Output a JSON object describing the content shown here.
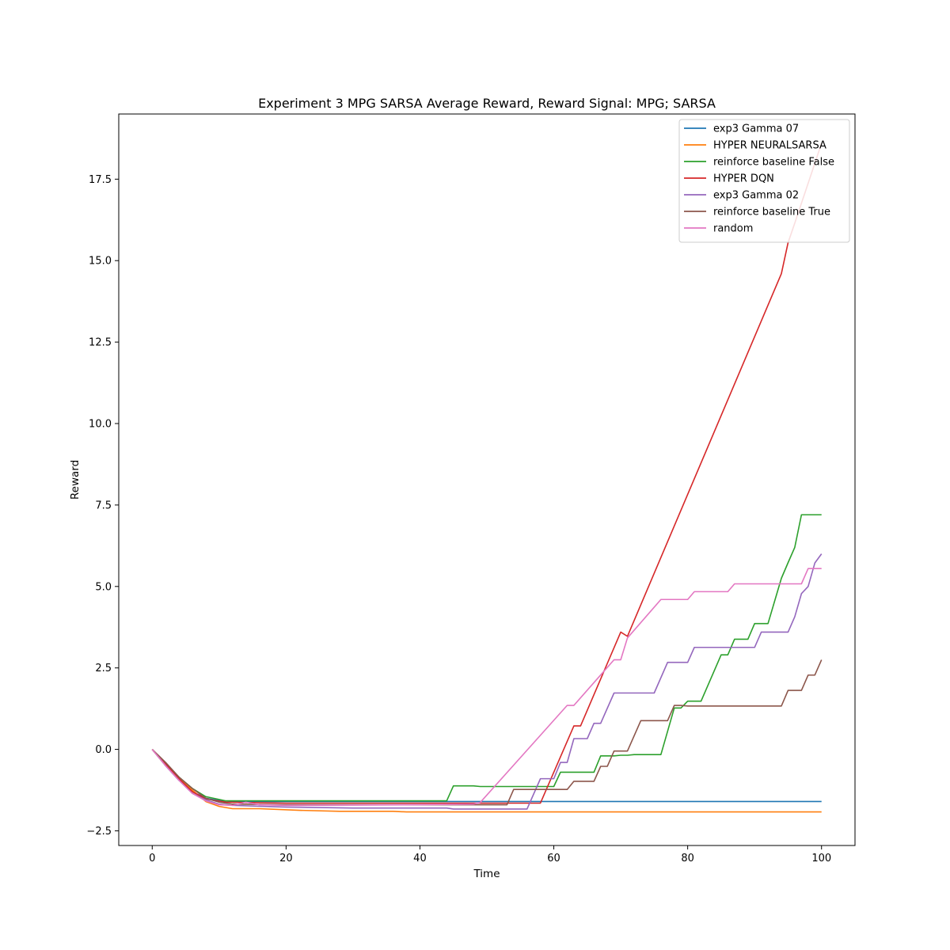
{
  "chart_data": {
    "type": "line",
    "title": "Experiment 3 MPG SARSA Average Reward,  Reward Signal: MPG; SARSA",
    "xlabel": "Time",
    "ylabel": "Reward",
    "xlim": [
      -5,
      105
    ],
    "ylim": [
      -2.95,
      19.5
    ],
    "xticks": [
      0,
      20,
      40,
      60,
      80,
      100
    ],
    "xtick_labels": [
      "0",
      "20",
      "40",
      "60",
      "80",
      "100"
    ],
    "yticks": [
      -2.5,
      0.0,
      2.5,
      5.0,
      7.5,
      10.0,
      12.5,
      15.0,
      17.5
    ],
    "ytick_labels": [
      "−2.5",
      "0.0",
      "2.5",
      "5.0",
      "7.5",
      "10.0",
      "12.5",
      "15.0",
      "17.5"
    ],
    "grid": false,
    "legend_position": "top-right",
    "series": [
      {
        "name": "exp3 Gamma 07",
        "color": "#1f77b4",
        "points": [
          [
            0,
            0
          ],
          [
            2,
            -0.5
          ],
          [
            4,
            -0.95
          ],
          [
            6,
            -1.3
          ],
          [
            8,
            -1.5
          ],
          [
            10,
            -1.57
          ],
          [
            12,
            -1.6
          ],
          [
            20,
            -1.6
          ],
          [
            40,
            -1.6
          ],
          [
            60,
            -1.6
          ],
          [
            80,
            -1.6
          ],
          [
            100,
            -1.6
          ]
        ]
      },
      {
        "name": "HYPER NEURALSARSA",
        "color": "#ff7f0e",
        "points": [
          [
            0,
            0
          ],
          [
            2,
            -0.5
          ],
          [
            4,
            -0.9
          ],
          [
            6,
            -1.25
          ],
          [
            8,
            -1.6
          ],
          [
            10,
            -1.75
          ],
          [
            12,
            -1.82
          ],
          [
            16,
            -1.82
          ],
          [
            22,
            -1.87
          ],
          [
            28,
            -1.9
          ],
          [
            36,
            -1.9
          ],
          [
            38,
            -1.92
          ],
          [
            60,
            -1.92
          ],
          [
            80,
            -1.92
          ],
          [
            100,
            -1.92
          ]
        ]
      },
      {
        "name": "reinforce baseline False",
        "color": "#2ca02c",
        "points": [
          [
            0,
            0
          ],
          [
            2,
            -0.45
          ],
          [
            4,
            -0.85
          ],
          [
            6,
            -1.2
          ],
          [
            8,
            -1.45
          ],
          [
            11,
            -1.58
          ],
          [
            44,
            -1.58
          ],
          [
            45,
            -1.12
          ],
          [
            48,
            -1.12
          ],
          [
            49,
            -1.14
          ],
          [
            60,
            -1.14
          ],
          [
            61,
            -0.7
          ],
          [
            66,
            -0.7
          ],
          [
            67,
            -0.2
          ],
          [
            69,
            -0.2
          ],
          [
            70,
            -0.18
          ],
          [
            71,
            -0.18
          ],
          [
            72,
            -0.16
          ],
          [
            76,
            -0.16
          ],
          [
            78,
            1.27
          ],
          [
            79,
            1.27
          ],
          [
            80,
            1.48
          ],
          [
            82,
            1.48
          ],
          [
            85,
            2.9
          ],
          [
            86,
            2.9
          ],
          [
            87,
            3.38
          ],
          [
            89,
            3.38
          ],
          [
            90,
            3.86
          ],
          [
            92,
            3.86
          ],
          [
            94,
            5.25
          ],
          [
            95,
            5.73
          ],
          [
            96,
            6.2
          ],
          [
            97,
            7.2
          ],
          [
            100,
            7.2
          ]
        ]
      },
      {
        "name": "HYPER DQN",
        "color": "#d62728",
        "points": [
          [
            0,
            0
          ],
          [
            2,
            -0.45
          ],
          [
            4,
            -0.9
          ],
          [
            6,
            -1.3
          ],
          [
            8,
            -1.52
          ],
          [
            11,
            -1.62
          ],
          [
            20,
            -1.65
          ],
          [
            40,
            -1.65
          ],
          [
            58,
            -1.65
          ],
          [
            63,
            0.72
          ],
          [
            64,
            0.72
          ],
          [
            70,
            3.6
          ],
          [
            71,
            3.47
          ],
          [
            94,
            14.6
          ],
          [
            95,
            15.55
          ],
          [
            96,
            16.15
          ],
          [
            100,
            18.6
          ]
        ]
      },
      {
        "name": "exp3 Gamma 02",
        "color": "#9467bd",
        "points": [
          [
            0,
            0
          ],
          [
            2,
            -0.5
          ],
          [
            4,
            -0.95
          ],
          [
            6,
            -1.35
          ],
          [
            8,
            -1.55
          ],
          [
            10,
            -1.68
          ],
          [
            12,
            -1.72
          ],
          [
            20,
            -1.77
          ],
          [
            30,
            -1.8
          ],
          [
            44,
            -1.8
          ],
          [
            45,
            -1.83
          ],
          [
            56,
            -1.83
          ],
          [
            58,
            -0.9
          ],
          [
            60,
            -0.9
          ],
          [
            61,
            -0.4
          ],
          [
            62,
            -0.4
          ],
          [
            63,
            0.33
          ],
          [
            65,
            0.33
          ],
          [
            66,
            0.8
          ],
          [
            67,
            0.8
          ],
          [
            69,
            1.73
          ],
          [
            75,
            1.73
          ],
          [
            77,
            2.67
          ],
          [
            80,
            2.67
          ],
          [
            81,
            3.13
          ],
          [
            90,
            3.13
          ],
          [
            91,
            3.6
          ],
          [
            94,
            3.6
          ],
          [
            95,
            3.6
          ],
          [
            96,
            4.07
          ],
          [
            97,
            4.78
          ],
          [
            98,
            5.0
          ],
          [
            99,
            5.72
          ],
          [
            100,
            6.0
          ]
        ]
      },
      {
        "name": "reinforce baseline True",
        "color": "#8c564b",
        "points": [
          [
            0,
            0
          ],
          [
            2,
            -0.4
          ],
          [
            4,
            -0.85
          ],
          [
            6,
            -1.2
          ],
          [
            8,
            -1.5
          ],
          [
            10,
            -1.62
          ],
          [
            12,
            -1.68
          ],
          [
            20,
            -1.7
          ],
          [
            40,
            -1.7
          ],
          [
            53,
            -1.7
          ],
          [
            54,
            -1.23
          ],
          [
            62,
            -1.23
          ],
          [
            63,
            -0.98
          ],
          [
            66,
            -0.98
          ],
          [
            67,
            -0.52
          ],
          [
            68,
            -0.52
          ],
          [
            69,
            -0.05
          ],
          [
            71,
            -0.05
          ],
          [
            73,
            0.88
          ],
          [
            77,
            0.88
          ],
          [
            78,
            1.35
          ],
          [
            79,
            1.35
          ],
          [
            80,
            1.33
          ],
          [
            94,
            1.33
          ],
          [
            95,
            1.81
          ],
          [
            97,
            1.81
          ],
          [
            98,
            2.28
          ],
          [
            99,
            2.28
          ],
          [
            100,
            2.75
          ]
        ]
      },
      {
        "name": "random",
        "color": "#e377c2",
        "points": [
          [
            0,
            0
          ],
          [
            2,
            -0.5
          ],
          [
            4,
            -0.95
          ],
          [
            6,
            -1.35
          ],
          [
            8,
            -1.58
          ],
          [
            10,
            -1.7
          ],
          [
            12,
            -1.72
          ],
          [
            14,
            -1.62
          ],
          [
            16,
            -1.7
          ],
          [
            20,
            -1.72
          ],
          [
            40,
            -1.7
          ],
          [
            48,
            -1.68
          ],
          [
            49,
            -1.63
          ],
          [
            62,
            1.35
          ],
          [
            63,
            1.35
          ],
          [
            69,
            2.75
          ],
          [
            70,
            2.75
          ],
          [
            71,
            3.42
          ],
          [
            76,
            4.6
          ],
          [
            80,
            4.6
          ],
          [
            81,
            4.84
          ],
          [
            86,
            4.84
          ],
          [
            87,
            5.08
          ],
          [
            97,
            5.08
          ],
          [
            98,
            5.55
          ],
          [
            100,
            5.55
          ]
        ]
      }
    ]
  }
}
